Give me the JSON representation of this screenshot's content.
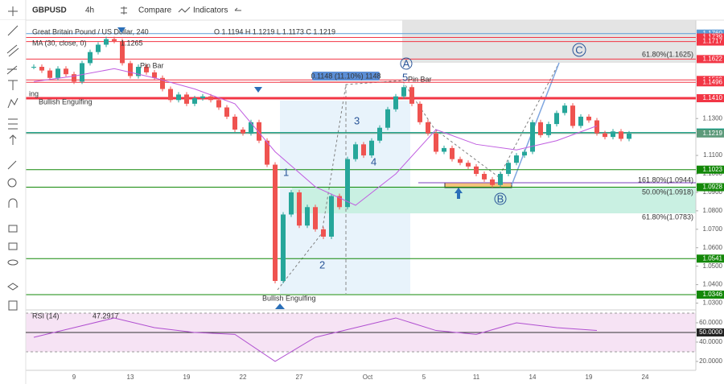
{
  "toolbar": {
    "symbol": "GBPUSD",
    "interval": "4h",
    "compare": "Compare",
    "indicators": "Indicators"
  },
  "legend": {
    "title": "Great Britain Pound / US Dollar, 240",
    "ohlc": "O 1.1194  H 1.1219  L 1.1173  C 1.1219",
    "ma_title": "MA (30, close, 0)",
    "ma_value": "1.1265",
    "rsi_title": "RSI (14)",
    "rsi_value": "47.2917"
  },
  "annotations": {
    "wave1": "1",
    "wave2": "2",
    "wave3": "3",
    "wave4": "4",
    "wave5": "5",
    "A": "A",
    "B": "B",
    "C": "C",
    "engulf_top": "Bullish Engulfing",
    "engulf_bottom": "Bullish Engulfing",
    "pin_left": "Pin Bar",
    "pin_right": "Pin Bar",
    "measure": "0.1148 (11.10%) 1148",
    "fib_c": "61.80%(1.1625)",
    "fib_161": "161.80%(1.0944)",
    "fib_50": "50.00%(1.0918)",
    "fib_618": "61.80%(1.0783)",
    "ing": "ing"
  },
  "chart_data": {
    "type": "candlestick",
    "close": [
      1.158,
      1.156,
      1.152,
      1.157,
      1.154,
      1.15,
      1.16,
      1.166,
      1.17,
      1.173,
      1.172,
      1.16,
      1.153,
      1.158,
      1.155,
      1.152,
      1.146,
      1.14,
      1.143,
      1.138,
      1.141,
      1.142,
      1.14,
      1.136,
      1.131,
      1.124,
      1.122,
      1.128,
      1.118,
      1.105,
      1.042,
      1.078,
      1.09,
      1.072,
      1.082,
      1.07,
      1.066,
      1.088,
      1.082,
      1.108,
      1.116,
      1.11,
      1.118,
      1.125,
      1.135,
      1.142,
      1.147,
      1.138,
      1.128,
      1.122,
      1.112,
      1.114,
      1.108,
      1.106,
      1.104,
      1.1,
      1.097,
      1.094,
      1.1,
      1.106,
      1.11,
      1.112,
      1.128,
      1.121,
      1.127,
      1.133,
      1.137,
      1.126,
      1.131,
      1.129,
      1.122,
      1.12,
      1.123,
      1.119,
      1.1219
    ],
    "up_color": "#26a69a",
    "down_color": "#ef5350",
    "ma": {
      "color": "#c05ee0",
      "values": [
        1.15,
        1.153,
        1.157,
        1.152,
        1.146,
        1.138,
        1.112,
        1.093,
        1.083,
        1.1,
        1.124,
        1.116,
        1.113,
        1.118,
        1.126
      ]
    },
    "ylim": [
      1.0263,
      1.1833
    ],
    "yticks": [
      {
        "value": 1.13,
        "label": "1.1300"
      },
      {
        "value": 1.11,
        "label": "1.1100"
      },
      {
        "value": 1.1,
        "label": "1.1000"
      },
      {
        "value": 1.09,
        "label": "1.0900"
      },
      {
        "value": 1.08,
        "label": "1.0800"
      },
      {
        "value": 1.07,
        "label": "1.0700"
      },
      {
        "value": 1.06,
        "label": "1.0600"
      },
      {
        "value": 1.05,
        "label": "1.0500"
      },
      {
        "value": 1.04,
        "label": "1.0400"
      },
      {
        "value": 1.03,
        "label": "1.0300"
      }
    ],
    "levels": [
      {
        "value": 1.176,
        "label": "1.1760",
        "color": "#5b9bd5"
      },
      {
        "value": 1.1739,
        "label": "1.1739",
        "color": "#f23645"
      },
      {
        "value": 1.1717,
        "label": "1.1717",
        "color": "#f23645"
      },
      {
        "value": 1.1622,
        "label": "1.1622",
        "color": "#f23645"
      },
      {
        "value": 1.1509,
        "label": "1.1509",
        "color": "#f23645"
      },
      {
        "value": 1.1496,
        "label": "1.1496",
        "color": "#f23645"
      },
      {
        "value": 1.141,
        "label": "1.1410",
        "color": "#f23645",
        "weight": 3
      },
      {
        "value": 1.1224,
        "label": "1.1224",
        "color": "#089981"
      },
      {
        "value": 1.1219,
        "label": "1.1219",
        "color": "#5d9a7a"
      },
      {
        "value": 1.1023,
        "label": "1.1023",
        "color": "#138808"
      },
      {
        "value": 1.0928,
        "label": "1.0928",
        "color": "#138808"
      },
      {
        "value": 1.0541,
        "label": "1.0541",
        "color": "#138808"
      },
      {
        "value": 1.0346,
        "label": "1.0346",
        "color": "#138808"
      }
    ],
    "time_labels": [
      "9",
      "13",
      "19",
      "22",
      "27",
      "Oct",
      "5",
      "11",
      "14",
      "19",
      "24"
    ],
    "rsi": {
      "color": "#b04fd0",
      "values": [
        45,
        55,
        65,
        55,
        50,
        48,
        20,
        45,
        55,
        65,
        52,
        48,
        60,
        55,
        52
      ],
      "ylim": [
        10.8,
        73.3
      ],
      "yticks": [
        {
          "value": 60,
          "label": "60.0000"
        },
        {
          "value": 40,
          "label": "40.0000"
        },
        {
          "value": 20,
          "label": "20.0000"
        }
      ],
      "mid": {
        "value": 50,
        "label": "50.0000"
      }
    }
  }
}
